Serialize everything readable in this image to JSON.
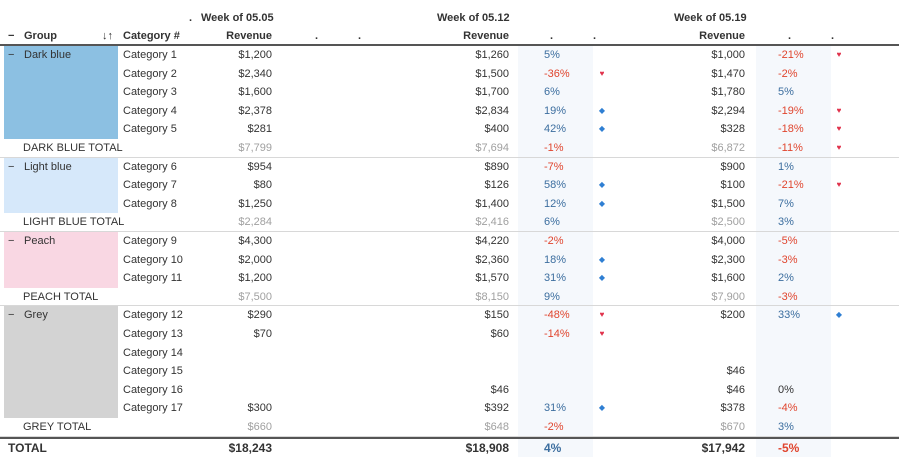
{
  "colors": {
    "group_dark_blue": "#8cc0e2",
    "group_light_blue": "#d6e8fa",
    "group_peach": "#f9d7e3",
    "group_grey": "#d3d3d3",
    "positive": "#3c6e9f",
    "negative": "#e0452e",
    "up_marker": "#2f7fd3",
    "down_marker": "#e0304a"
  },
  "header": {
    "week1_title": "Week of 05.05",
    "week1_dot": ".",
    "week2_title": "Week of 05.12",
    "week3_title": "Week of 05.19",
    "group_col": "Group",
    "collapse_glyph": "−",
    "sort_glyph": "↓↑",
    "category_col": "Category #",
    "revenue_label": "Revenue",
    "dot": "."
  },
  "groups": [
    {
      "name": "Dark blue",
      "color": "#8cc0e2",
      "total_label": "DARK BLUE TOTAL",
      "total": {
        "w1": "$7,799",
        "w2": "$7,694",
        "w2_pct": "-1%",
        "w2_dir": "neg",
        "w3": "$6,872",
        "w3_pct": "-11%",
        "w3_dir": "neg",
        "w3_marker": "down"
      },
      "rows": [
        {
          "cat": "Category 1",
          "w1": "$1,200",
          "w2": "$1,260",
          "w2_pct": "5%",
          "w2_dir": "pos",
          "w2_marker": "",
          "w3": "$1,000",
          "w3_pct": "-21%",
          "w3_dir": "neg",
          "w3_marker": "down"
        },
        {
          "cat": "Category 2",
          "w1": "$2,340",
          "w2": "$1,500",
          "w2_pct": "-36%",
          "w2_dir": "neg",
          "w2_marker": "down",
          "w3": "$1,470",
          "w3_pct": "-2%",
          "w3_dir": "neg",
          "w3_marker": ""
        },
        {
          "cat": "Category 3",
          "w1": "$1,600",
          "w2": "$1,700",
          "w2_pct": "6%",
          "w2_dir": "pos",
          "w2_marker": "",
          "w3": "$1,780",
          "w3_pct": "5%",
          "w3_dir": "pos",
          "w3_marker": ""
        },
        {
          "cat": "Category 4",
          "w1": "$2,378",
          "w2": "$2,834",
          "w2_pct": "19%",
          "w2_dir": "pos",
          "w2_marker": "up",
          "w3": "$2,294",
          "w3_pct": "-19%",
          "w3_dir": "neg",
          "w3_marker": "down"
        },
        {
          "cat": "Category 5",
          "w1": "$281",
          "w2": "$400",
          "w2_pct": "42%",
          "w2_dir": "pos",
          "w2_marker": "up",
          "w3": "$328",
          "w3_pct": "-18%",
          "w3_dir": "neg",
          "w3_marker": "down"
        }
      ]
    },
    {
      "name": "Light blue",
      "color": "#d6e8fa",
      "total_label": "LIGHT BLUE TOTAL",
      "total": {
        "w1": "$2,284",
        "w2": "$2,416",
        "w2_pct": "6%",
        "w2_dir": "pos",
        "w3": "$2,500",
        "w3_pct": "3%",
        "w3_dir": "pos",
        "w3_marker": ""
      },
      "rows": [
        {
          "cat": "Category 6",
          "w1": "$954",
          "w2": "$890",
          "w2_pct": "-7%",
          "w2_dir": "neg",
          "w2_marker": "",
          "w3": "$900",
          "w3_pct": "1%",
          "w3_dir": "pos",
          "w3_marker": ""
        },
        {
          "cat": "Category 7",
          "w1": "$80",
          "w2": "$126",
          "w2_pct": "58%",
          "w2_dir": "pos",
          "w2_marker": "up",
          "w3": "$100",
          "w3_pct": "-21%",
          "w3_dir": "neg",
          "w3_marker": "down"
        },
        {
          "cat": "Category 8",
          "w1": "$1,250",
          "w2": "$1,400",
          "w2_pct": "12%",
          "w2_dir": "pos",
          "w2_marker": "up",
          "w3": "$1,500",
          "w3_pct": "7%",
          "w3_dir": "pos",
          "w3_marker": ""
        }
      ]
    },
    {
      "name": "Peach",
      "color": "#f9d7e3",
      "total_label": "PEACH TOTAL",
      "total": {
        "w1": "$7,500",
        "w2": "$8,150",
        "w2_pct": "9%",
        "w2_dir": "pos",
        "w3": "$7,900",
        "w3_pct": "-3%",
        "w3_dir": "neg",
        "w3_marker": ""
      },
      "rows": [
        {
          "cat": "Category 9",
          "w1": "$4,300",
          "w2": "$4,220",
          "w2_pct": "-2%",
          "w2_dir": "neg",
          "w2_marker": "",
          "w3": "$4,000",
          "w3_pct": "-5%",
          "w3_dir": "neg",
          "w3_marker": ""
        },
        {
          "cat": "Category 10",
          "w1": "$2,000",
          "w2": "$2,360",
          "w2_pct": "18%",
          "w2_dir": "pos",
          "w2_marker": "up",
          "w3": "$2,300",
          "w3_pct": "-3%",
          "w3_dir": "neg",
          "w3_marker": ""
        },
        {
          "cat": "Category 11",
          "w1": "$1,200",
          "w2": "$1,570",
          "w2_pct": "31%",
          "w2_dir": "pos",
          "w2_marker": "up",
          "w3": "$1,600",
          "w3_pct": "2%",
          "w3_dir": "pos",
          "w3_marker": ""
        }
      ]
    },
    {
      "name": "Grey",
      "color": "#d3d3d3",
      "total_label": "GREY TOTAL",
      "total": {
        "w1": "$660",
        "w2": "$648",
        "w2_pct": "-2%",
        "w2_dir": "neg",
        "w3": "$670",
        "w3_pct": "3%",
        "w3_dir": "pos",
        "w3_marker": ""
      },
      "rows": [
        {
          "cat": "Category 12",
          "w1": "$290",
          "w2": "$150",
          "w2_pct": "-48%",
          "w2_dir": "neg",
          "w2_marker": "down",
          "w3": "$200",
          "w3_pct": "33%",
          "w3_dir": "pos",
          "w3_marker": "up"
        },
        {
          "cat": "Category 13",
          "w1": "$70",
          "w2": "$60",
          "w2_pct": "-14%",
          "w2_dir": "neg",
          "w2_marker": "down",
          "w3": "",
          "w3_pct": "",
          "w3_dir": "",
          "w3_marker": ""
        },
        {
          "cat": "Category 14",
          "w1": "",
          "w2": "",
          "w2_pct": "",
          "w2_dir": "",
          "w2_marker": "",
          "w3": "",
          "w3_pct": "",
          "w3_dir": "",
          "w3_marker": ""
        },
        {
          "cat": "Category 15",
          "w1": "",
          "w2": "",
          "w2_pct": "",
          "w2_dir": "",
          "w2_marker": "",
          "w3": "$46",
          "w3_pct": "",
          "w3_dir": "",
          "w3_marker": ""
        },
        {
          "cat": "Category 16",
          "w1": "",
          "w2": "$46",
          "w2_pct": "",
          "w2_dir": "",
          "w2_marker": "",
          "w3": "$46",
          "w3_pct": "0%",
          "w3_dir": "zero",
          "w3_marker": ""
        },
        {
          "cat": "Category 17",
          "w1": "$300",
          "w2": "$392",
          "w2_pct": "31%",
          "w2_dir": "pos",
          "w2_marker": "up",
          "w3": "$378",
          "w3_pct": "-4%",
          "w3_dir": "neg",
          "w3_marker": ""
        }
      ]
    }
  ],
  "grand_total": {
    "label": "TOTAL",
    "w1": "$18,243",
    "w2": "$18,908",
    "w2_pct": "4%",
    "w2_dir": "pos",
    "w3": "$17,942",
    "w3_pct": "-5%",
    "w3_dir": "neg"
  },
  "marker_glyphs": {
    "up": "◆",
    "down": "♥"
  }
}
